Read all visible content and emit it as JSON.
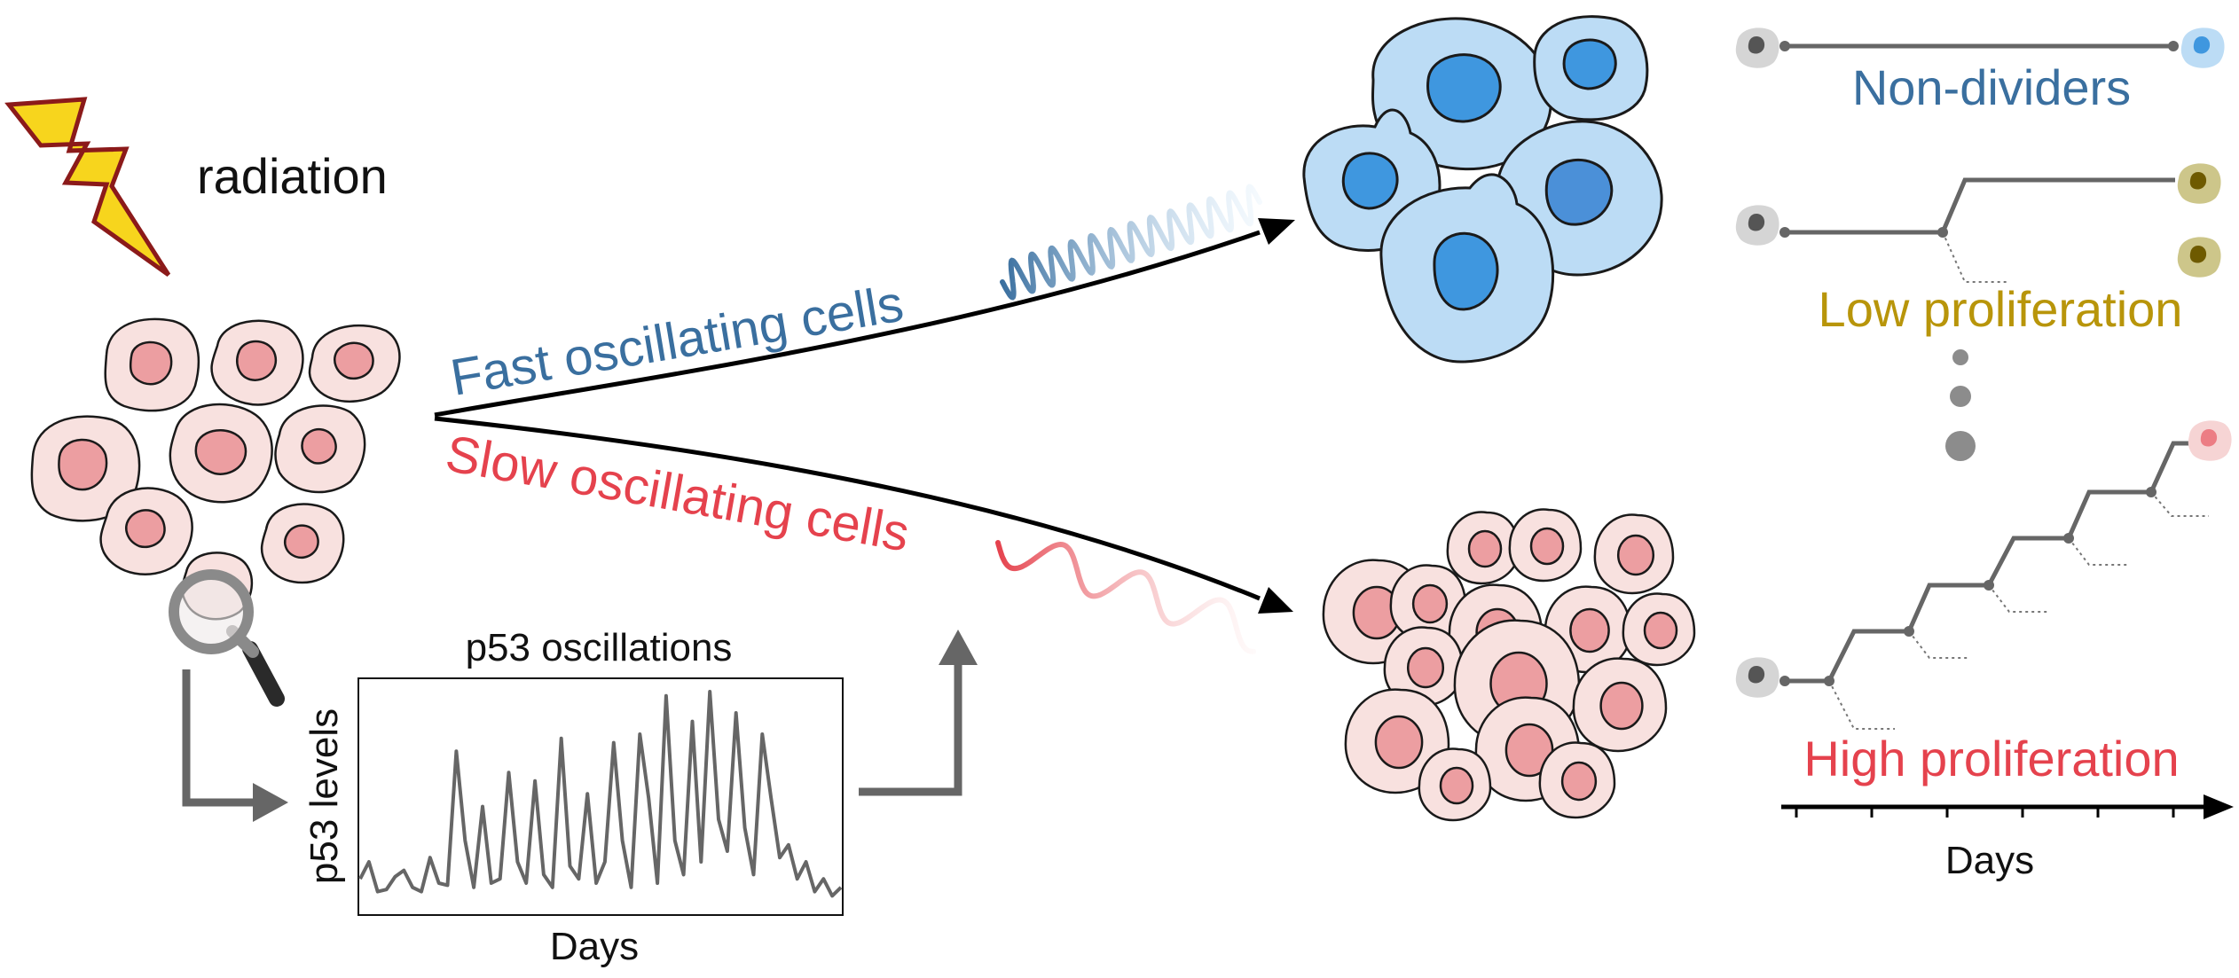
{
  "labels": {
    "radiation": "radiation",
    "fast": "Fast oscillating cells",
    "slow": "Slow oscillating cells",
    "plot_title": "p53 oscillations",
    "plot_ylabel": "p53 levels",
    "plot_xlabel": "Days",
    "non_dividers": "Non-dividers",
    "low_prolif": "Low proliferation",
    "high_prolif": "High proliferation",
    "timeline_xlabel": "Days"
  },
  "colors": {
    "blue_text": "#3a6f9f",
    "gold_text": "#b8950a",
    "red_text": "#e5424d",
    "pink_cell": "#f8e1df",
    "pink_nucleus": "#ec9ea1",
    "blue_cell": "#bcdcf5",
    "blue_nucleus": "#3f97df",
    "bolt_fill": "#f7d51d",
    "bolt_stroke": "#8b1a1a",
    "gray_line": "#666666"
  },
  "icons": [
    "lightning-bolt-icon",
    "magnifier-icon"
  ],
  "chart_data": {
    "type": "line",
    "title": "p53 oscillations",
    "xlabel": "Days",
    "ylabel": "p53 levels",
    "y": [
      0.12,
      0.2,
      0.06,
      0.07,
      0.13,
      0.16,
      0.08,
      0.06,
      0.22,
      0.1,
      0.09,
      0.72,
      0.3,
      0.08,
      0.46,
      0.1,
      0.12,
      0.62,
      0.2,
      0.1,
      0.58,
      0.14,
      0.08,
      0.78,
      0.18,
      0.12,
      0.52,
      0.1,
      0.2,
      0.76,
      0.3,
      0.08,
      0.8,
      0.5,
      0.1,
      0.98,
      0.3,
      0.14,
      0.86,
      0.2,
      1.0,
      0.4,
      0.25,
      0.9,
      0.36,
      0.14,
      0.8,
      0.5,
      0.22,
      0.28,
      0.12,
      0.2,
      0.06,
      0.12,
      0.04,
      0.08
    ]
  }
}
